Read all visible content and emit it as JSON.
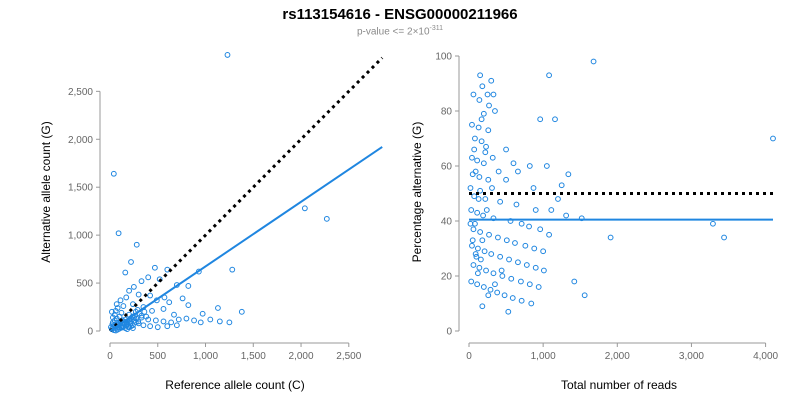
{
  "title_main": "rs113154616 - ENSG00000211966",
  "subtitle": {
    "prefix": "p-value <= 2×10",
    "exponent": "-311"
  },
  "colors": {
    "points": "#1f86e0",
    "fit": "#1f86e0",
    "reference": "#000000",
    "axis": "#999999"
  },
  "chart_data": [
    {
      "type": "scatter",
      "xlabel": "Reference allele count (C)",
      "ylabel": "Alternative allele count (G)",
      "xlim": [
        0,
        2900
      ],
      "ylim": [
        0,
        2900
      ],
      "xticks": [
        0,
        500,
        1000,
        1500,
        2000,
        2500
      ],
      "xtick_labels": [
        "0",
        "500",
        "1,000",
        "1,500",
        "2,000",
        "2,500"
      ],
      "yticks": [
        0,
        500,
        1000,
        1500,
        2000,
        2500
      ],
      "ytick_labels": [
        "0",
        "500",
        "1,000",
        "1,500",
        "2,000",
        "2,500"
      ],
      "reference_line": {
        "style": "dotted",
        "x": [
          0,
          2850
        ],
        "y": [
          0,
          2850
        ]
      },
      "fit_line": {
        "style": "solid",
        "x": [
          0,
          2850
        ],
        "y": [
          0,
          1920
        ]
      },
      "points": [
        [
          1230,
          2880
        ],
        [
          40,
          1640
        ],
        [
          90,
          1020
        ],
        [
          2040,
          1280
        ],
        [
          2270,
          1170
        ],
        [
          280,
          900
        ],
        [
          470,
          660
        ],
        [
          600,
          640
        ],
        [
          1280,
          640
        ],
        [
          930,
          620
        ],
        [
          220,
          720
        ],
        [
          160,
          610
        ],
        [
          400,
          560
        ],
        [
          520,
          540
        ],
        [
          330,
          520
        ],
        [
          250,
          460
        ],
        [
          700,
          480
        ],
        [
          820,
          470
        ],
        [
          200,
          420
        ],
        [
          300,
          380
        ],
        [
          420,
          370
        ],
        [
          570,
          350
        ],
        [
          760,
          340
        ],
        [
          620,
          300
        ],
        [
          490,
          320
        ],
        [
          820,
          270
        ],
        [
          1130,
          240
        ],
        [
          1380,
          200
        ],
        [
          970,
          180
        ],
        [
          670,
          170
        ],
        [
          560,
          230
        ],
        [
          440,
          210
        ],
        [
          350,
          250
        ],
        [
          140,
          260
        ],
        [
          80,
          240
        ],
        [
          60,
          210
        ],
        [
          120,
          190
        ],
        [
          200,
          170
        ],
        [
          260,
          160
        ],
        [
          330,
          140
        ],
        [
          400,
          120
        ],
        [
          480,
          110
        ],
        [
          560,
          100
        ],
        [
          640,
          90
        ],
        [
          720,
          120
        ],
        [
          800,
          130
        ],
        [
          880,
          110
        ],
        [
          950,
          90
        ],
        [
          1050,
          120
        ],
        [
          1150,
          100
        ],
        [
          1250,
          90
        ],
        [
          300,
          80
        ],
        [
          240,
          60
        ],
        [
          180,
          70
        ],
        [
          130,
          50
        ],
        [
          90,
          40
        ],
        [
          60,
          30
        ],
        [
          40,
          60
        ],
        [
          30,
          90
        ],
        [
          50,
          110
        ],
        [
          70,
          130
        ],
        [
          100,
          150
        ],
        [
          160,
          120
        ],
        [
          210,
          100
        ],
        [
          270,
          90
        ],
        [
          350,
          60
        ],
        [
          420,
          50
        ],
        [
          500,
          40
        ],
        [
          600,
          50
        ],
        [
          700,
          60
        ],
        [
          20,
          20
        ],
        [
          40,
          10
        ],
        [
          60,
          5
        ],
        [
          80,
          15
        ],
        [
          100,
          25
        ],
        [
          120,
          35
        ],
        [
          140,
          45
        ],
        [
          160,
          30
        ],
        [
          180,
          20
        ],
        [
          200,
          40
        ],
        [
          220,
          50
        ],
        [
          240,
          30
        ],
        [
          30,
          140
        ],
        [
          50,
          170
        ],
        [
          20,
          200
        ],
        [
          70,
          280
        ],
        [
          110,
          320
        ],
        [
          240,
          280
        ],
        [
          170,
          350
        ],
        [
          90,
          70
        ],
        [
          110,
          90
        ],
        [
          130,
          110
        ],
        [
          150,
          80
        ],
        [
          170,
          60
        ],
        [
          190,
          45
        ],
        [
          210,
          75
        ],
        [
          230,
          120
        ],
        [
          250,
          140
        ],
        [
          270,
          200
        ],
        [
          290,
          220
        ],
        [
          310,
          180
        ],
        [
          330,
          160
        ],
        [
          360,
          200
        ],
        [
          380,
          150
        ],
        [
          10,
          40
        ],
        [
          25,
          70
        ],
        [
          35,
          30
        ],
        [
          55,
          55
        ],
        [
          75,
          85
        ],
        [
          95,
          60
        ],
        [
          115,
          45
        ],
        [
          135,
          75
        ],
        [
          155,
          95
        ],
        [
          175,
          85
        ],
        [
          195,
          110
        ],
        [
          215,
          130
        ],
        [
          235,
          150
        ],
        [
          255,
          110
        ],
        [
          275,
          130
        ],
        [
          295,
          100
        ]
      ]
    },
    {
      "type": "scatter",
      "xlabel": "Total number of reads",
      "ylabel": "Percentage alternative (G)",
      "xlim": [
        0,
        4100
      ],
      "ylim": [
        0,
        100
      ],
      "xticks": [
        0,
        1000,
        2000,
        3000,
        4000
      ],
      "xtick_labels": [
        "0",
        "1,000",
        "2,000",
        "3,000",
        "4,000"
      ],
      "yticks": [
        0,
        20,
        40,
        60,
        80,
        100
      ],
      "ytick_labels": [
        "0",
        "20",
        "40",
        "60",
        "80",
        "100"
      ],
      "reference_line": {
        "style": "dotted",
        "x": [
          0,
          4100
        ],
        "y": [
          50,
          50
        ]
      },
      "fit_line": {
        "style": "solid",
        "x": [
          0,
          4100
        ],
        "y": [
          40.5,
          40.5
        ]
      },
      "points": [
        [
          1680,
          98
        ],
        [
          150,
          93
        ],
        [
          300,
          91
        ],
        [
          180,
          89
        ],
        [
          1080,
          93
        ],
        [
          250,
          86
        ],
        [
          60,
          86
        ],
        [
          140,
          84
        ],
        [
          270,
          82
        ],
        [
          200,
          79
        ],
        [
          350,
          80
        ],
        [
          1160,
          77
        ],
        [
          960,
          77
        ],
        [
          40,
          75
        ],
        [
          130,
          74
        ],
        [
          260,
          73
        ],
        [
          80,
          70
        ],
        [
          170,
          69
        ],
        [
          4100,
          70
        ],
        [
          70,
          66
        ],
        [
          220,
          65
        ],
        [
          320,
          63
        ],
        [
          500,
          66
        ],
        [
          600,
          61
        ],
        [
          40,
          63
        ],
        [
          110,
          62
        ],
        [
          200,
          61
        ],
        [
          1050,
          60
        ],
        [
          820,
          60
        ],
        [
          1340,
          57
        ],
        [
          400,
          58
        ],
        [
          660,
          58
        ],
        [
          50,
          57
        ],
        [
          140,
          56
        ],
        [
          260,
          55
        ],
        [
          500,
          55
        ],
        [
          1250,
          53
        ],
        [
          870,
          52
        ],
        [
          310,
          52
        ],
        [
          150,
          51
        ],
        [
          70,
          49
        ],
        [
          220,
          48
        ],
        [
          420,
          47
        ],
        [
          640,
          46
        ],
        [
          900,
          44
        ],
        [
          1110,
          44
        ],
        [
          1200,
          48
        ],
        [
          1310,
          42
        ],
        [
          1520,
          41
        ],
        [
          30,
          44
        ],
        [
          110,
          43
        ],
        [
          190,
          42
        ],
        [
          330,
          41
        ],
        [
          560,
          40
        ],
        [
          710,
          39
        ],
        [
          810,
          38
        ],
        [
          960,
          37
        ],
        [
          1080,
          35
        ],
        [
          1910,
          34
        ],
        [
          3290,
          39
        ],
        [
          3440,
          34
        ],
        [
          60,
          37
        ],
        [
          150,
          36
        ],
        [
          270,
          35
        ],
        [
          390,
          34
        ],
        [
          510,
          33
        ],
        [
          620,
          32
        ],
        [
          760,
          31
        ],
        [
          880,
          30
        ],
        [
          1000,
          29
        ],
        [
          40,
          31
        ],
        [
          120,
          30
        ],
        [
          210,
          29
        ],
        [
          300,
          28
        ],
        [
          420,
          27
        ],
        [
          540,
          26
        ],
        [
          660,
          25
        ],
        [
          780,
          24
        ],
        [
          900,
          23
        ],
        [
          1010,
          22
        ],
        [
          60,
          24
        ],
        [
          140,
          23
        ],
        [
          230,
          22
        ],
        [
          330,
          21
        ],
        [
          450,
          20
        ],
        [
          570,
          19
        ],
        [
          700,
          18
        ],
        [
          820,
          17
        ],
        [
          940,
          16
        ],
        [
          1420,
          18
        ],
        [
          1560,
          13
        ],
        [
          30,
          18
        ],
        [
          110,
          17
        ],
        [
          200,
          16
        ],
        [
          290,
          15
        ],
        [
          380,
          14
        ],
        [
          480,
          13
        ],
        [
          590,
          12
        ],
        [
          710,
          11
        ],
        [
          840,
          10
        ],
        [
          180,
          9
        ],
        [
          530,
          7
        ],
        [
          260,
          13
        ],
        [
          350,
          17
        ],
        [
          440,
          22
        ],
        [
          100,
          27
        ],
        [
          180,
          33
        ],
        [
          80,
          39
        ],
        [
          240,
          44
        ],
        [
          130,
          48
        ],
        [
          20,
          52
        ],
        [
          90,
          58
        ],
        [
          230,
          67
        ],
        [
          170,
          77
        ],
        [
          330,
          86
        ],
        [
          20,
          39
        ],
        [
          50,
          33
        ],
        [
          90,
          28
        ],
        [
          120,
          21
        ],
        [
          160,
          26
        ]
      ]
    }
  ]
}
